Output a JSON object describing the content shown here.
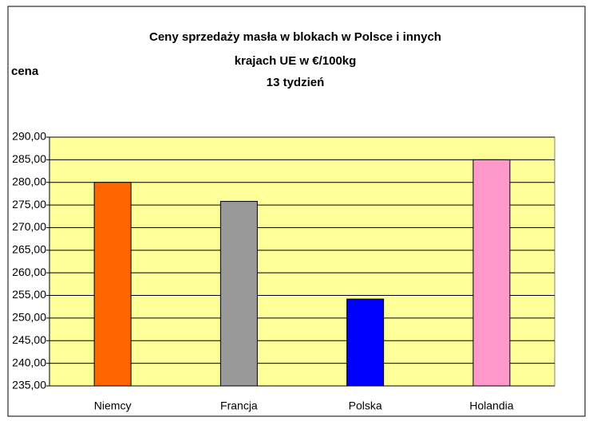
{
  "chart_data": {
    "type": "bar",
    "title": [
      "Ceny sprzedaży masła w blokach w Polsce i  innych",
      "krajach UE w €/100kg",
      "13 tydzień"
    ],
    "y_label": "cena",
    "categories": [
      "Niemcy",
      "Francja",
      "Polska",
      "Holandia"
    ],
    "values": [
      280,
      275.8,
      254.2,
      285
    ],
    "colors": [
      "#ff6600",
      "#999999",
      "#0000ff",
      "#ff99cc"
    ],
    "plot_background": "#ffff99",
    "ylim": [
      235,
      290
    ],
    "yticks": [
      {
        "value": 235,
        "label": "235,00"
      },
      {
        "value": 240,
        "label": "240,00"
      },
      {
        "value": 245,
        "label": "245,00"
      },
      {
        "value": 250,
        "label": "250,00"
      },
      {
        "value": 255,
        "label": "255,00"
      },
      {
        "value": 260,
        "label": "260,00"
      },
      {
        "value": 265,
        "label": "265,00"
      },
      {
        "value": 270,
        "label": "270,00"
      },
      {
        "value": 275,
        "label": "275,00"
      },
      {
        "value": 280,
        "label": "280,00"
      },
      {
        "value": 285,
        "label": "285,00"
      },
      {
        "value": 290,
        "label": "290,00"
      }
    ],
    "grid": true
  }
}
